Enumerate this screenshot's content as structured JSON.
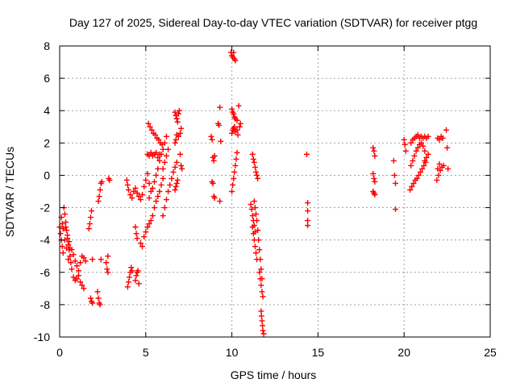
{
  "chart_data": {
    "type": "scatter",
    "title": "Day 127 of 2025, Sidereal Day-to-day VTEC variation (SDTVAR) for receiver ptgg",
    "xlabel": "GPS time / hours",
    "ylabel": "SDTVAR / TECUs",
    "xlim": [
      0,
      25
    ],
    "ylim": [
      -10,
      8
    ],
    "xticks": [
      0,
      5,
      10,
      15,
      20,
      25
    ],
    "yticks": [
      -10,
      -8,
      -6,
      -4,
      -2,
      0,
      2,
      4,
      6,
      8
    ],
    "grid": true,
    "legend": "none",
    "marker": "plus",
    "color": "#ff0000",
    "series": [
      {
        "name": "SDTVAR",
        "points": [
          [
            0.0,
            -3.2
          ],
          [
            0.05,
            -3.6
          ],
          [
            0.1,
            -4.0
          ],
          [
            0.15,
            -4.4
          ],
          [
            0.2,
            -4.8
          ],
          [
            0.25,
            -2.0
          ],
          [
            0.3,
            -2.4
          ],
          [
            0.35,
            -2.9
          ],
          [
            0.4,
            -3.4
          ],
          [
            0.45,
            -3.9
          ],
          [
            0.5,
            -4.3
          ],
          [
            0.55,
            -4.6
          ],
          [
            0.6,
            -5.0
          ],
          [
            0.65,
            -5.4
          ],
          [
            0.7,
            -5.8
          ],
          [
            0.1,
            -2.6
          ],
          [
            0.15,
            -3.0
          ],
          [
            0.2,
            -3.3
          ],
          [
            0.3,
            -4.0
          ],
          [
            0.4,
            -4.5
          ],
          [
            0.5,
            -5.2
          ],
          [
            0.35,
            -3.2
          ],
          [
            0.45,
            -3.7
          ],
          [
            0.55,
            -4.1
          ],
          [
            0.6,
            -4.5
          ],
          [
            0.7,
            -4.6
          ],
          [
            0.8,
            -4.9
          ],
          [
            0.9,
            -5.3
          ],
          [
            1.0,
            -5.6
          ],
          [
            1.1,
            -5.9
          ],
          [
            1.2,
            -5.4
          ],
          [
            1.3,
            -5.0
          ],
          [
            1.4,
            -5.1
          ],
          [
            1.5,
            -5.3
          ],
          [
            0.8,
            -6.3
          ],
          [
            0.9,
            -6.5
          ],
          [
            1.0,
            -6.4
          ],
          [
            1.1,
            -6.2
          ],
          [
            1.2,
            -6.6
          ],
          [
            1.3,
            -6.8
          ],
          [
            1.4,
            -7.0
          ],
          [
            1.8,
            -7.6
          ],
          [
            1.85,
            -7.8
          ],
          [
            1.9,
            -7.9
          ],
          [
            1.7,
            -3.3
          ],
          [
            1.75,
            -3.0
          ],
          [
            1.8,
            -2.6
          ],
          [
            1.85,
            -2.2
          ],
          [
            1.9,
            -5.2
          ],
          [
            2.2,
            -7.2
          ],
          [
            2.25,
            -7.6
          ],
          [
            2.3,
            -7.9
          ],
          [
            2.35,
            -8.0
          ],
          [
            2.25,
            -1.6
          ],
          [
            2.3,
            -1.3
          ],
          [
            2.35,
            -0.9
          ],
          [
            2.4,
            -0.5
          ],
          [
            2.45,
            -0.4
          ],
          [
            2.4,
            -5.2
          ],
          [
            2.8,
            -5.0
          ],
          [
            2.7,
            -5.4
          ],
          [
            2.75,
            -5.8
          ],
          [
            2.8,
            -6.0
          ],
          [
            2.85,
            -0.2
          ],
          [
            2.9,
            -0.3
          ],
          [
            3.95,
            -6.9
          ],
          [
            4.0,
            -6.6
          ],
          [
            4.05,
            -6.3
          ],
          [
            4.1,
            -6.0
          ],
          [
            4.15,
            -5.7
          ],
          [
            4.2,
            -5.9
          ],
          [
            4.4,
            -6.5
          ],
          [
            4.45,
            -6.2
          ],
          [
            4.5,
            -6.0
          ],
          [
            4.55,
            -5.9
          ],
          [
            4.6,
            -6.7
          ],
          [
            3.9,
            -0.3
          ],
          [
            3.95,
            -0.6
          ],
          [
            4.0,
            -0.9
          ],
          [
            4.1,
            -1.2
          ],
          [
            4.2,
            -1.4
          ],
          [
            4.3,
            -1.0
          ],
          [
            4.4,
            -0.8
          ],
          [
            4.5,
            -1.1
          ],
          [
            4.6,
            -1.3
          ],
          [
            4.7,
            -1.5
          ],
          [
            4.8,
            -1.2
          ],
          [
            4.9,
            -0.7
          ],
          [
            5.0,
            -0.3
          ],
          [
            5.1,
            0.1
          ],
          [
            5.2,
            -0.5
          ],
          [
            4.4,
            -3.2
          ],
          [
            4.45,
            -3.6
          ],
          [
            4.5,
            -3.9
          ],
          [
            4.7,
            -4.2
          ],
          [
            4.8,
            -4.4
          ],
          [
            4.9,
            -3.8
          ],
          [
            5.0,
            -3.5
          ],
          [
            5.1,
            -3.2
          ],
          [
            5.2,
            -3.0
          ],
          [
            5.3,
            -2.8
          ],
          [
            5.4,
            -2.5
          ],
          [
            5.5,
            -2.0
          ],
          [
            5.6,
            -1.6
          ],
          [
            5.7,
            -1.3
          ],
          [
            5.8,
            -1.0
          ],
          [
            5.9,
            -0.6
          ],
          [
            6.0,
            -0.2
          ],
          [
            5.2,
            -1.4
          ],
          [
            5.3,
            -1.0
          ],
          [
            5.4,
            -0.8
          ],
          [
            5.5,
            -0.4
          ],
          [
            5.6,
            0.0
          ],
          [
            5.7,
            0.4
          ],
          [
            5.8,
            0.9
          ],
          [
            5.9,
            1.3
          ],
          [
            6.0,
            1.6
          ],
          [
            6.1,
            2.0
          ],
          [
            6.2,
            2.4
          ],
          [
            5.1,
            1.3
          ],
          [
            5.2,
            1.2
          ],
          [
            5.3,
            1.4
          ],
          [
            5.4,
            1.2
          ],
          [
            5.5,
            1.3
          ],
          [
            5.6,
            1.4
          ],
          [
            5.7,
            1.1
          ],
          [
            5.8,
            1.3
          ],
          [
            5.15,
            3.2
          ],
          [
            5.25,
            3.0
          ],
          [
            5.35,
            2.8
          ],
          [
            5.45,
            2.6
          ],
          [
            5.55,
            2.5
          ],
          [
            5.65,
            2.3
          ],
          [
            5.75,
            2.2
          ],
          [
            5.85,
            2.0
          ],
          [
            5.95,
            1.9
          ],
          [
            6.0,
            -2.5
          ],
          [
            6.1,
            -2.0
          ],
          [
            6.2,
            -1.5
          ],
          [
            6.3,
            -1.0
          ],
          [
            6.4,
            -0.6
          ],
          [
            6.5,
            -0.2
          ],
          [
            6.6,
            0.2
          ],
          [
            6.7,
            0.5
          ],
          [
            6.8,
            0.8
          ],
          [
            6.0,
            0.4
          ],
          [
            6.1,
            0.8
          ],
          [
            6.2,
            1.2
          ],
          [
            6.3,
            1.6
          ],
          [
            6.7,
            -0.9
          ],
          [
            6.75,
            -0.7
          ],
          [
            6.8,
            -0.5
          ],
          [
            6.85,
            -0.3
          ],
          [
            6.7,
            2.0
          ],
          [
            6.75,
            2.2
          ],
          [
            6.8,
            2.5
          ],
          [
            6.9,
            2.4
          ],
          [
            7.0,
            2.6
          ],
          [
            7.05,
            2.9
          ],
          [
            7.0,
            1.3
          ],
          [
            7.05,
            0.6
          ],
          [
            7.1,
            0.4
          ],
          [
            6.7,
            3.9
          ],
          [
            6.75,
            3.7
          ],
          [
            6.8,
            3.5
          ],
          [
            6.85,
            3.3
          ],
          [
            6.9,
            3.8
          ],
          [
            6.95,
            4.0
          ],
          [
            8.8,
            2.4
          ],
          [
            8.85,
            2.2
          ],
          [
            8.9,
            1.1
          ],
          [
            8.95,
            0.9
          ],
          [
            9.0,
            1.2
          ],
          [
            8.85,
            -0.4
          ],
          [
            8.9,
            -0.5
          ],
          [
            8.95,
            -1.3
          ],
          [
            9.0,
            -1.4
          ],
          [
            9.2,
            3.2
          ],
          [
            9.25,
            3.1
          ],
          [
            9.3,
            4.2
          ],
          [
            9.35,
            2.1
          ],
          [
            9.3,
            -1.6
          ],
          [
            9.95,
            7.6
          ],
          [
            10.0,
            7.4
          ],
          [
            10.05,
            7.3
          ],
          [
            10.1,
            7.6
          ],
          [
            10.15,
            7.2
          ],
          [
            10.2,
            7.1
          ],
          [
            10.0,
            4.1
          ],
          [
            10.05,
            3.9
          ],
          [
            10.1,
            3.8
          ],
          [
            10.15,
            3.6
          ],
          [
            10.2,
            3.5
          ],
          [
            10.3,
            3.4
          ],
          [
            10.4,
            4.3
          ],
          [
            10.45,
            3.0
          ],
          [
            10.5,
            3.2
          ],
          [
            10.0,
            2.6
          ],
          [
            10.05,
            2.8
          ],
          [
            10.1,
            2.9
          ],
          [
            10.15,
            3.0
          ],
          [
            10.2,
            2.7
          ],
          [
            10.3,
            2.8
          ],
          [
            10.35,
            2.5
          ],
          [
            10.0,
            -1.0
          ],
          [
            10.05,
            -0.6
          ],
          [
            10.1,
            -0.2
          ],
          [
            10.15,
            0.2
          ],
          [
            10.2,
            0.6
          ],
          [
            10.25,
            1.0
          ],
          [
            10.3,
            1.4
          ],
          [
            11.2,
            1.3
          ],
          [
            11.25,
            1.0
          ],
          [
            11.3,
            0.8
          ],
          [
            11.35,
            0.5
          ],
          [
            11.4,
            0.2
          ],
          [
            11.45,
            0.0
          ],
          [
            11.5,
            -0.2
          ],
          [
            11.1,
            -1.8
          ],
          [
            11.15,
            -2.1
          ],
          [
            11.2,
            -2.5
          ],
          [
            11.25,
            -2.8
          ],
          [
            11.3,
            -3.1
          ],
          [
            11.35,
            -3.5
          ],
          [
            11.2,
            -3.2
          ],
          [
            11.25,
            -3.6
          ],
          [
            11.3,
            -4.0
          ],
          [
            11.35,
            -4.4
          ],
          [
            11.4,
            -4.8
          ],
          [
            11.45,
            -5.2
          ],
          [
            11.3,
            -1.6
          ],
          [
            11.35,
            -2.0
          ],
          [
            11.4,
            -2.4
          ],
          [
            11.45,
            -2.8
          ],
          [
            11.5,
            -3.4
          ],
          [
            11.55,
            -4.0
          ],
          [
            11.6,
            -4.6
          ],
          [
            11.65,
            -5.2
          ],
          [
            11.7,
            -5.8
          ],
          [
            11.75,
            -6.4
          ],
          [
            11.6,
            -6.0
          ],
          [
            11.65,
            -6.4
          ],
          [
            11.7,
            -6.8
          ],
          [
            11.75,
            -7.2
          ],
          [
            11.8,
            -7.5
          ],
          [
            11.7,
            -8.4
          ],
          [
            11.72,
            -8.7
          ],
          [
            11.75,
            -9.0
          ],
          [
            11.78,
            -9.3
          ],
          [
            11.8,
            -9.6
          ],
          [
            11.85,
            -9.8
          ],
          [
            14.35,
            1.3
          ],
          [
            14.4,
            -1.7
          ],
          [
            14.4,
            -2.2
          ],
          [
            14.4,
            -2.8
          ],
          [
            14.4,
            -3.1
          ],
          [
            18.2,
            1.7
          ],
          [
            18.25,
            1.5
          ],
          [
            18.3,
            1.2
          ],
          [
            18.2,
            0.1
          ],
          [
            18.25,
            -0.2
          ],
          [
            18.3,
            -0.4
          ],
          [
            18.2,
            -1.0
          ],
          [
            18.25,
            -1.1
          ],
          [
            18.3,
            -1.2
          ],
          [
            19.4,
            0.9
          ],
          [
            19.45,
            0.0
          ],
          [
            19.5,
            -0.5
          ],
          [
            19.5,
            -2.1
          ],
          [
            20.0,
            2.2
          ],
          [
            20.05,
            1.9
          ],
          [
            20.1,
            1.5
          ],
          [
            20.35,
            -0.9
          ],
          [
            20.45,
            -0.7
          ],
          [
            20.55,
            -0.5
          ],
          [
            20.65,
            -0.3
          ],
          [
            20.75,
            -0.2
          ],
          [
            20.85,
            0.0
          ],
          [
            20.95,
            0.2
          ],
          [
            21.05,
            0.4
          ],
          [
            21.15,
            0.6
          ],
          [
            21.25,
            0.8
          ],
          [
            20.4,
            0.6
          ],
          [
            20.5,
            0.9
          ],
          [
            20.6,
            1.2
          ],
          [
            20.7,
            1.5
          ],
          [
            20.8,
            1.7
          ],
          [
            20.9,
            1.9
          ],
          [
            21.0,
            2.0
          ],
          [
            21.1,
            1.8
          ],
          [
            21.2,
            1.5
          ],
          [
            20.4,
            2.0
          ],
          [
            20.5,
            2.2
          ],
          [
            20.6,
            2.3
          ],
          [
            20.7,
            2.4
          ],
          [
            20.8,
            2.5
          ],
          [
            20.9,
            2.3
          ],
          [
            21.0,
            2.4
          ],
          [
            21.1,
            2.3
          ],
          [
            21.2,
            2.4
          ],
          [
            21.3,
            2.3
          ],
          [
            21.4,
            2.4
          ],
          [
            21.2,
            0.9
          ],
          [
            21.3,
            1.1
          ],
          [
            21.4,
            1.3
          ],
          [
            21.9,
            -0.3
          ],
          [
            22.0,
            0.0
          ],
          [
            22.1,
            0.3
          ],
          [
            22.2,
            0.5
          ],
          [
            22.3,
            0.6
          ],
          [
            21.95,
            0.4
          ],
          [
            22.05,
            0.7
          ],
          [
            21.95,
            2.3
          ],
          [
            22.05,
            2.2
          ],
          [
            22.15,
            2.4
          ],
          [
            22.25,
            2.3
          ],
          [
            22.45,
            2.8
          ],
          [
            22.5,
            1.7
          ],
          [
            22.55,
            0.4
          ]
        ]
      }
    ]
  }
}
